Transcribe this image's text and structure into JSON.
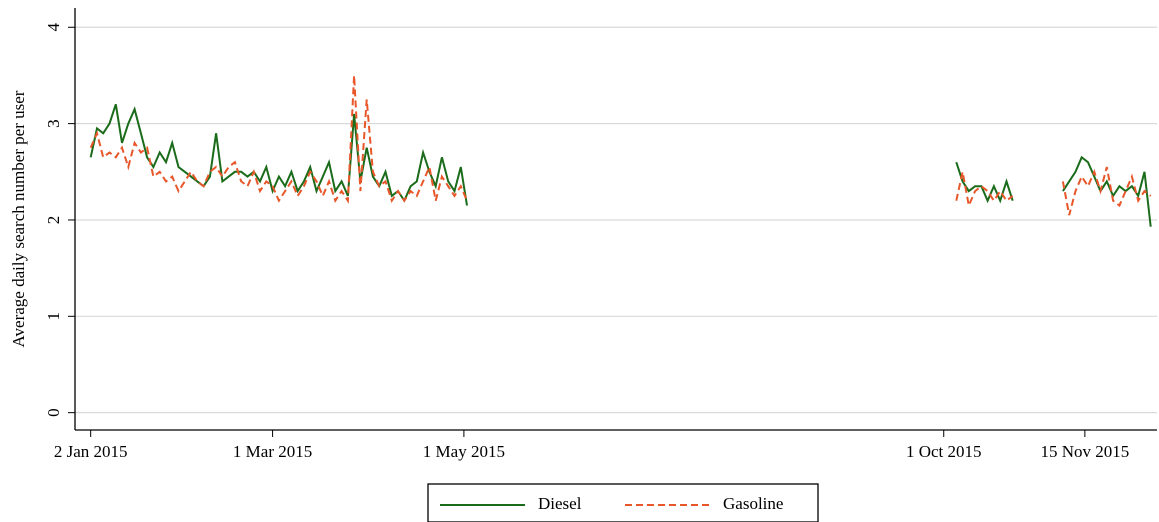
{
  "chart_data": {
    "type": "line",
    "y_label": "Average daily search number per user",
    "x": [
      "2015-01-02",
      "2015-01-04",
      "2015-01-06",
      "2015-01-08",
      "2015-01-10",
      "2015-01-12",
      "2015-01-14",
      "2015-01-16",
      "2015-01-18",
      "2015-01-20",
      "2015-01-22",
      "2015-01-24",
      "2015-01-26",
      "2015-01-28",
      "2015-01-30",
      "2015-02-01",
      "2015-02-03",
      "2015-02-05",
      "2015-02-07",
      "2015-02-09",
      "2015-02-11",
      "2015-02-13",
      "2015-02-15",
      "2015-02-17",
      "2015-02-19",
      "2015-02-21",
      "2015-02-23",
      "2015-02-25",
      "2015-02-27",
      "2015-03-01",
      "2015-03-03",
      "2015-03-05",
      "2015-03-07",
      "2015-03-09",
      "2015-03-11",
      "2015-03-13",
      "2015-03-15",
      "2015-03-17",
      "2015-03-19",
      "2015-03-21",
      "2015-03-23",
      "2015-03-25",
      "2015-03-27",
      "2015-03-29",
      "2015-03-31",
      "2015-04-02",
      "2015-04-04",
      "2015-04-06",
      "2015-04-08",
      "2015-04-10",
      "2015-04-12",
      "2015-04-14",
      "2015-04-16",
      "2015-04-18",
      "2015-04-20",
      "2015-04-22",
      "2015-04-24",
      "2015-04-26",
      "2015-04-28",
      "2015-04-30",
      "2015-05-02",
      "2015-06-01",
      "2015-10-05",
      "2015-10-07",
      "2015-10-09",
      "2015-10-11",
      "2015-10-13",
      "2015-10-15",
      "2015-10-17",
      "2015-10-19",
      "2015-10-21",
      "2015-10-23",
      "2015-11-01",
      "2015-11-08",
      "2015-11-10",
      "2015-11-12",
      "2015-11-14",
      "2015-11-16",
      "2015-11-18",
      "2015-11-20",
      "2015-11-22",
      "2015-11-24",
      "2015-11-26",
      "2015-11-28",
      "2015-11-30",
      "2015-12-02",
      "2015-12-04",
      "2015-12-06"
    ],
    "series": [
      {
        "name": "Diesel",
        "color": "#1a6b1a",
        "dash": false,
        "values": [
          2.65,
          2.95,
          2.9,
          3.0,
          3.2,
          2.8,
          3.0,
          3.15,
          2.9,
          2.65,
          2.55,
          2.7,
          2.6,
          2.8,
          2.55,
          2.5,
          2.45,
          2.4,
          2.35,
          2.45,
          2.9,
          2.4,
          2.45,
          2.5,
          2.5,
          2.45,
          2.5,
          2.4,
          2.55,
          2.3,
          2.45,
          2.35,
          2.5,
          2.3,
          2.4,
          2.55,
          2.3,
          2.45,
          2.6,
          2.3,
          2.4,
          2.25,
          3.1,
          2.4,
          2.75,
          2.45,
          2.35,
          2.5,
          2.25,
          2.3,
          2.2,
          2.35,
          2.4,
          2.7,
          2.5,
          2.35,
          2.65,
          2.4,
          2.3,
          2.55,
          2.15,
          null,
          2.6,
          2.4,
          2.3,
          2.35,
          2.35,
          2.2,
          2.35,
          2.2,
          2.4,
          2.2,
          null,
          2.3,
          2.4,
          2.5,
          2.65,
          2.6,
          2.45,
          2.3,
          2.4,
          2.25,
          2.35,
          2.3,
          2.35,
          2.25,
          2.5,
          1.93
        ]
      },
      {
        "name": "Gasoline",
        "color": "#e8572a",
        "dash": true,
        "values": [
          2.75,
          2.9,
          2.65,
          2.7,
          2.65,
          2.75,
          2.55,
          2.8,
          2.7,
          2.75,
          2.45,
          2.5,
          2.4,
          2.45,
          2.3,
          2.4,
          2.5,
          2.4,
          2.35,
          2.5,
          2.55,
          2.45,
          2.55,
          2.6,
          2.4,
          2.35,
          2.5,
          2.3,
          2.4,
          2.35,
          2.2,
          2.3,
          2.4,
          2.25,
          2.35,
          2.5,
          2.4,
          2.25,
          2.4,
          2.2,
          2.3,
          2.2,
          3.5,
          2.3,
          3.25,
          2.5,
          2.35,
          2.4,
          2.2,
          2.3,
          2.2,
          2.3,
          2.25,
          2.4,
          2.55,
          2.2,
          2.45,
          2.35,
          2.25,
          2.35,
          2.2,
          null,
          2.2,
          2.5,
          2.15,
          2.3,
          2.35,
          2.3,
          2.2,
          2.3,
          2.2,
          2.25,
          null,
          2.4,
          2.05,
          2.3,
          2.45,
          2.35,
          2.5,
          2.3,
          2.55,
          2.2,
          2.15,
          2.3,
          2.45,
          2.2,
          2.3,
          2.25
        ]
      }
    ],
    "xlim": [
      "2014-12-28",
      "2015-12-08"
    ],
    "xticks": [
      {
        "value": "2015-01-02",
        "label": "2 Jan 2015"
      },
      {
        "value": "2015-03-01",
        "label": "1 Mar 2015"
      },
      {
        "value": "2015-05-01",
        "label": "1 May 2015"
      },
      {
        "value": "2015-10-01",
        "label": "1 Oct 2015"
      },
      {
        "value": "2015-11-15",
        "label": "15 Nov 2015"
      }
    ],
    "ylim": [
      -0.18,
      4.2
    ],
    "yticks": [
      0,
      1,
      2,
      3,
      4
    ],
    "grid": true,
    "legend": "bottom"
  }
}
